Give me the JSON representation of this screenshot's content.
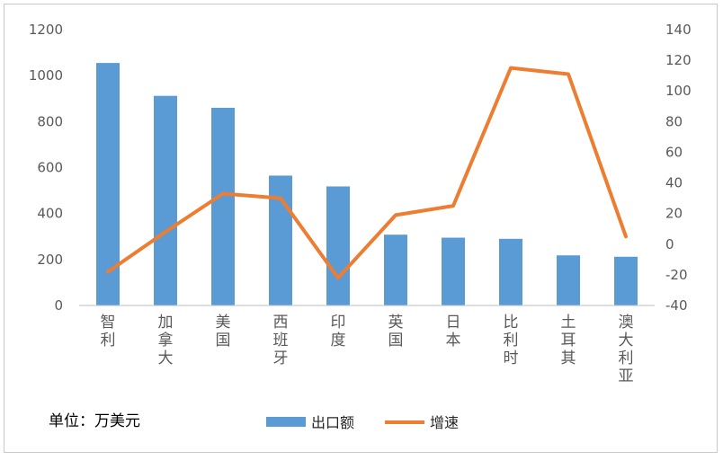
{
  "chart_data": {
    "type": "bar+line",
    "categories": [
      "智利",
      "加拿大",
      "美国",
      "西班牙",
      "印度",
      "英国",
      "日本",
      "比利时",
      "土耳其",
      "澳大利亚"
    ],
    "series": [
      {
        "name": "出口额",
        "type": "bar",
        "axis": "left",
        "values": [
          1055,
          912,
          860,
          565,
          518,
          308,
          295,
          290,
          218,
          212
        ]
      },
      {
        "name": "增速",
        "type": "line",
        "axis": "right",
        "values": [
          -18,
          8,
          33,
          30,
          -22,
          19,
          25,
          115,
          111,
          5
        ]
      }
    ],
    "y_left": {
      "min": 0,
      "max": 1200,
      "ticks": [
        0,
        200,
        400,
        600,
        800,
        1000,
        1200
      ]
    },
    "y_right": {
      "min": -40,
      "max": 140,
      "ticks": [
        -40,
        -20,
        0,
        20,
        40,
        60,
        80,
        100,
        120,
        140
      ]
    },
    "grid": false,
    "legend": "bottom-center",
    "unit_label": "单位：万美元",
    "colors": {
      "bar": "#5B9BD5",
      "line": "#ED7D31",
      "axis": "#BFBFBF",
      "text": "#595959"
    }
  }
}
